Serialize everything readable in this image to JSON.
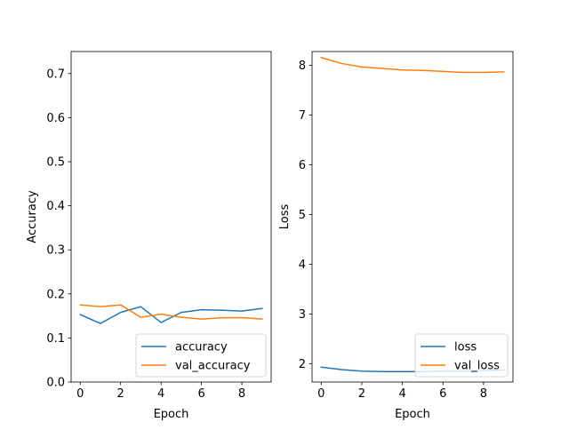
{
  "chart_data": [
    {
      "type": "line",
      "title": "",
      "xlabel": "Epoch",
      "ylabel": "Accuracy",
      "xlim": [
        -0.45,
        9.45
      ],
      "ylim": [
        0.0,
        0.75
      ],
      "xticks": [
        0,
        2,
        4,
        6,
        8
      ],
      "xtick_labels": [
        "0",
        "2",
        "4",
        "6",
        "8"
      ],
      "yticks": [
        0.0,
        0.1,
        0.2,
        0.3,
        0.4,
        0.5,
        0.6,
        0.7
      ],
      "ytick_labels": [
        "0.0",
        "0.1",
        "0.2",
        "0.3",
        "0.4",
        "0.5",
        "0.6",
        "0.7"
      ],
      "grid": false,
      "legend_position": "lower-right",
      "x": [
        0,
        1,
        2,
        3,
        4,
        5,
        6,
        7,
        8,
        9
      ],
      "series": [
        {
          "name": "accuracy",
          "color": "#1f77b4",
          "values": [
            0.153,
            0.133,
            0.158,
            0.171,
            0.135,
            0.158,
            0.164,
            0.163,
            0.161,
            0.167
          ]
        },
        {
          "name": "val_accuracy",
          "color": "#ff7f0e",
          "values": [
            0.175,
            0.171,
            0.175,
            0.147,
            0.154,
            0.147,
            0.143,
            0.146,
            0.146,
            0.143
          ]
        }
      ]
    },
    {
      "type": "line",
      "title": "",
      "xlabel": "Epoch",
      "ylabel": "Loss",
      "xlim": [
        -0.45,
        9.45
      ],
      "ylim": [
        1.63,
        8.28
      ],
      "xticks": [
        0,
        2,
        4,
        6,
        8
      ],
      "xtick_labels": [
        "0",
        "2",
        "4",
        "6",
        "8"
      ],
      "yticks": [
        2,
        3,
        4,
        5,
        6,
        7,
        8
      ],
      "ytick_labels": [
        "2",
        "3",
        "4",
        "5",
        "6",
        "7",
        "8"
      ],
      "grid": false,
      "legend_position": "lower-right",
      "x": [
        0,
        1,
        2,
        3,
        4,
        5,
        6,
        7,
        8,
        9
      ],
      "series": [
        {
          "name": "loss",
          "color": "#1f77b4",
          "values": [
            1.93,
            1.88,
            1.85,
            1.84,
            1.84,
            1.84,
            1.85,
            1.85,
            1.86,
            1.87
          ]
        },
        {
          "name": "val_loss",
          "color": "#ff7f0e",
          "values": [
            8.16,
            8.04,
            7.97,
            7.94,
            7.91,
            7.9,
            7.88,
            7.86,
            7.86,
            7.87
          ]
        }
      ]
    }
  ]
}
